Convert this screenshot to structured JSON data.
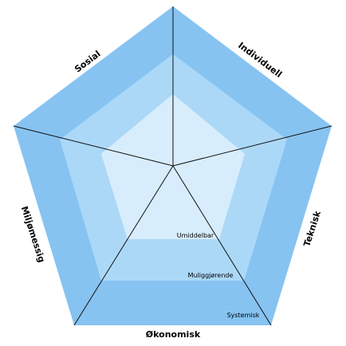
{
  "segments": [
    "Sosial",
    "Individuell",
    "Teknisk",
    "Økonomisk",
    "Miljømessig"
  ],
  "levels": [
    "Umiddelbar",
    "Muliggjørende",
    "Systemisk"
  ]
}
